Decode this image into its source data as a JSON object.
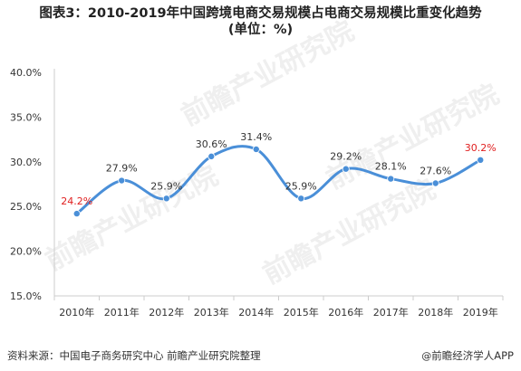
{
  "title": {
    "line1": "图表3：2010-2019年中国跨境电商交易规模占电商交易规模比重变化趋势",
    "line2": "(单位：%)"
  },
  "watermark": {
    "text": "前瞻产业研究院"
  },
  "source": "资料来源：中国电子商务研究中心 前瞻产业研究院整理",
  "credit": "前瞻经济学人APP",
  "colors": {
    "line": "#4a8fd8",
    "label": "#333333",
    "highlight_label": "#e02020",
    "axis": "#cccccc",
    "watermark": "#e8e8e8"
  },
  "chart_data": {
    "type": "line",
    "categories": [
      "2010年",
      "2011年",
      "2012年",
      "2013年",
      "2014年",
      "2015年",
      "2016年",
      "2017年",
      "2018年",
      "2019年"
    ],
    "series": [
      {
        "values": [
          24.2,
          27.9,
          25.9,
          30.6,
          31.4,
          25.9,
          29.2,
          28.1,
          27.6,
          30.2
        ],
        "labels": [
          "24.2%",
          "27.9%",
          "25.9%",
          "30.6%",
          "31.4%",
          "25.9%",
          "29.2%",
          "28.1%",
          "27.6%",
          "30.2%"
        ],
        "highlighted": [
          true,
          false,
          false,
          false,
          false,
          false,
          false,
          false,
          false,
          true
        ]
      }
    ],
    "yticks": [
      "15.0%",
      "20.0%",
      "25.0%",
      "30.0%",
      "35.0%",
      "40.0%"
    ],
    "ytick_values": [
      15,
      20,
      25,
      30,
      35,
      40
    ],
    "ylim": [
      15,
      40
    ],
    "grid": false,
    "smooth": true,
    "legend": "none"
  }
}
